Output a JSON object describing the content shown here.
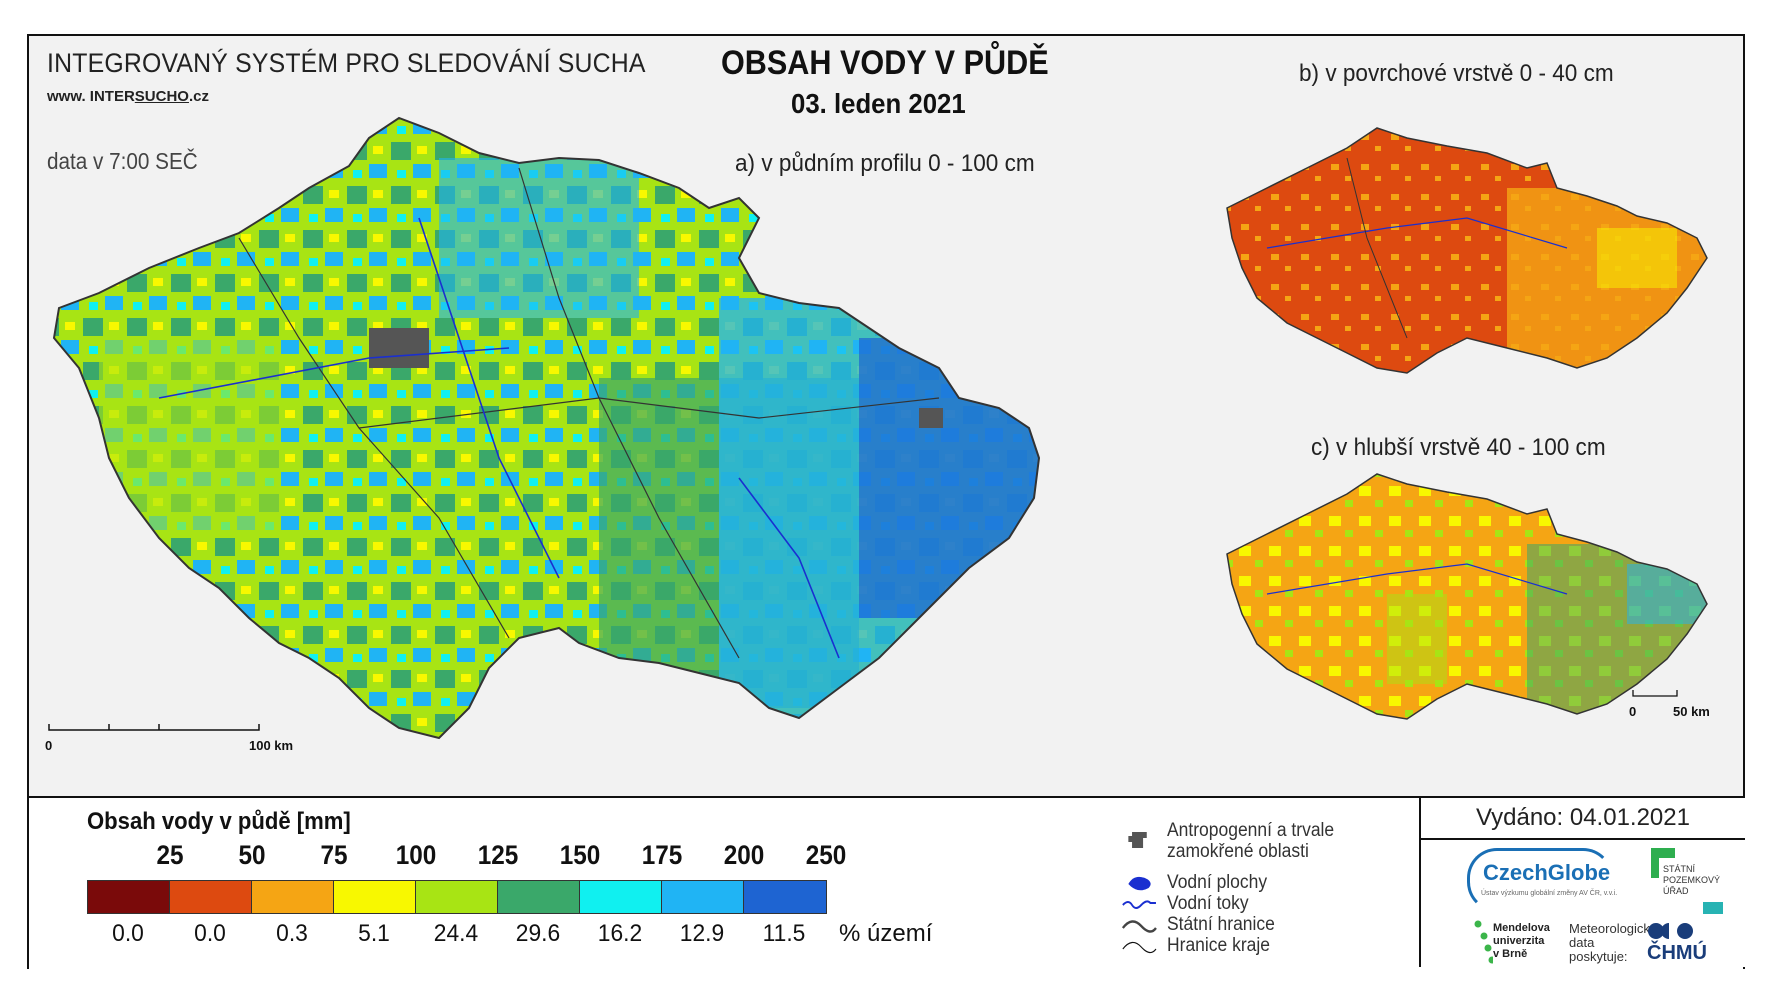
{
  "header": {
    "system_title": "INTEGROVANÝ SYSTÉM PRO SLEDOVÁNÍ SUCHA",
    "website_prefix": "www. INTER",
    "website_mid": "SUCHO",
    "website_suffix": ".cz",
    "data_time": "data v 7:00 SEČ",
    "main_title": "OBSAH VODY V PŮDĚ",
    "date": "03. leden 2021"
  },
  "panels": {
    "a": "a) v půdním profilu 0 - 100 cm",
    "b": "b) v povrchové vrstvě 0 - 40 cm",
    "c": "c) v hlubší vrstvě 40 - 100 cm"
  },
  "scalebars": {
    "main": {
      "start": "0",
      "end": "100 km"
    },
    "small": {
      "start": "0",
      "end": "50 km"
    }
  },
  "legend": {
    "title": "Obsah vody v půdě  [mm]",
    "boundaries": [
      "25",
      "50",
      "75",
      "100",
      "125",
      "150",
      "175",
      "200",
      "250"
    ],
    "colors": [
      "#7a0a0a",
      "#dd4a10",
      "#f5a514",
      "#f8f800",
      "#a8e414",
      "#3aa86a",
      "#10f0f0",
      "#20b4f4",
      "#1e64d2"
    ],
    "percentages": [
      "0.0",
      "0.0",
      "0.3",
      "5.1",
      "24.4",
      "29.6",
      "16.2",
      "12.9",
      "11.5"
    ],
    "percent_unit": "% území"
  },
  "symbols": {
    "anthropogenic_line1": "Antropogenní a trvale",
    "anthropogenic_line2": "zamokřené oblasti",
    "water_bodies": "Vodní plochy",
    "watercourses": "Vodní toky",
    "state_border": "Státní hranice",
    "region_border": "Hranice kraje"
  },
  "issued": "Vydáno: 04.01.2021",
  "logos": {
    "czechglobe": "CzechGlobe",
    "czechglobe_sub": "Ústav výzkumu globální změny AV ČR, v.v.i.",
    "spu_line1": "STÁTNÍ",
    "spu_line2": "POZEMKOVÝ",
    "spu_line3": "ÚŘAD",
    "mendel_line1": "Mendelova",
    "mendel_line2": "univerzita",
    "mendel_line3": "v Brně",
    "meteo_line1": "Meteorologická",
    "meteo_line2": "data",
    "meteo_line3": "poskytuje:",
    "chmu": "ČHMÚ"
  }
}
